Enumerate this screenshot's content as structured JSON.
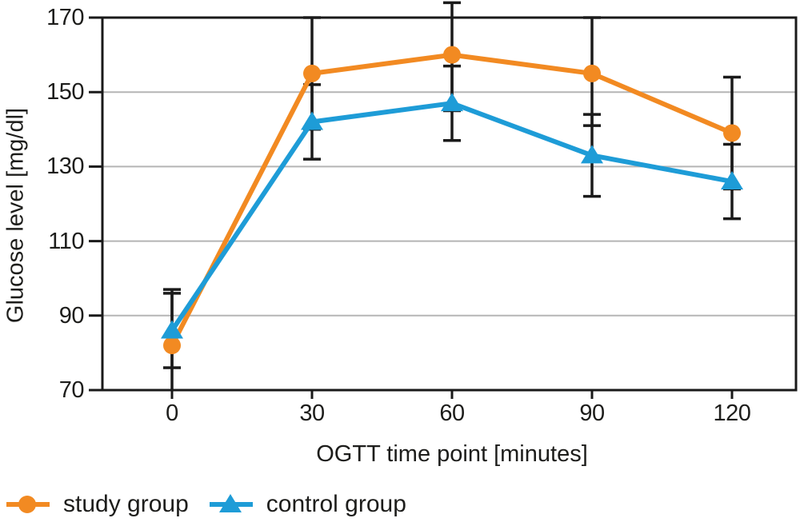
{
  "chart_data": {
    "type": "line",
    "title": "",
    "xlabel": "OGTT time point [minutes]",
    "ylabel": "Glucose level [mg/dl]",
    "x": [
      0,
      30,
      60,
      90,
      120
    ],
    "x_ticks": [
      "0",
      "30",
      "60",
      "90",
      "120"
    ],
    "y_ticks": [
      "70",
      "90",
      "110",
      "130",
      "150",
      "170"
    ],
    "ylim": [
      70,
      170
    ],
    "grid": "horizontal gridlines at interior y ticks",
    "legend_position": "below-left",
    "error_bars": "black vertical lines with end caps, both series, overlapping on same x",
    "series": [
      {
        "name": "study group",
        "marker": "circle",
        "color": "#F28A22",
        "values": [
          82,
          155,
          160,
          155,
          139
        ],
        "err_plus": [
          15,
          15,
          14,
          15,
          15
        ],
        "err_minus": [
          15,
          15,
          15,
          14,
          15
        ]
      },
      {
        "name": "control group",
        "marker": "triangle",
        "color": "#1E9CD7",
        "values": [
          86,
          142,
          147,
          133,
          126
        ],
        "err_plus": [
          10,
          10,
          10,
          11,
          10
        ],
        "err_minus": [
          10,
          10,
          10,
          11,
          10
        ]
      }
    ],
    "style": {
      "axis_color": "#1a1a1a",
      "grid_color": "#b5b5b5",
      "errorbar_color": "#1a1a1a",
      "text_color": "#1d1d1b",
      "background": "#ffffff"
    }
  }
}
